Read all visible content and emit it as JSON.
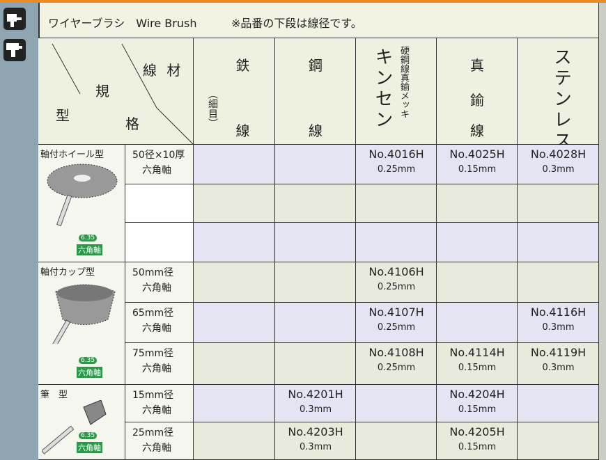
{
  "header": {
    "title": "ワイヤーブラシ　Wire Brush",
    "note": "※品番の下段は線径です。"
  },
  "corner": {
    "material": "線 材",
    "spec_top": "規",
    "type": "型",
    "spec_bottom": "格"
  },
  "columns": [
    {
      "top": "鉄",
      "sub": "（細目）",
      "bottom": "線"
    },
    {
      "top": "鋼",
      "bottom": "線"
    },
    {
      "top": "キンセン",
      "sub": "硬鋼線真鍮メッキ"
    },
    {
      "top": "真",
      "mid": "鍮",
      "bottom": "線"
    },
    {
      "top": "ステンレス線"
    }
  ],
  "badge": {
    "size": "6.35",
    "label": "六角軸"
  },
  "groups": [
    {
      "name": "軸付ホイール型",
      "rows": [
        {
          "spec": [
            "50径×10厚",
            "六角軸"
          ],
          "cells": [
            null,
            null,
            {
              "no": "No.4016H",
              "dia": "0.25mm"
            },
            {
              "no": "No.4025H",
              "dia": "0.15mm"
            },
            {
              "no": "No.4028H",
              "dia": "0.3mm"
            }
          ]
        },
        {
          "spec": [],
          "cells": [
            null,
            null,
            null,
            null,
            null
          ]
        },
        {
          "spec": [],
          "cells": [
            null,
            null,
            null,
            null,
            null
          ]
        }
      ]
    },
    {
      "name": "軸付カップ型",
      "rows": [
        {
          "spec": [
            "50mm径",
            "六角軸"
          ],
          "cells": [
            null,
            null,
            {
              "no": "No.4106H",
              "dia": "0.25mm"
            },
            null,
            null
          ]
        },
        {
          "spec": [
            "65mm径",
            "六角軸"
          ],
          "cells": [
            null,
            null,
            {
              "no": "No.4107H",
              "dia": "0.25mm"
            },
            null,
            {
              "no": "No.4116H",
              "dia": "0.3mm"
            }
          ]
        },
        {
          "spec": [
            "75mm径",
            "六角軸"
          ],
          "cells": [
            null,
            null,
            {
              "no": "No.4108H",
              "dia": "0.25mm"
            },
            {
              "no": "No.4114H",
              "dia": "0.15mm"
            },
            {
              "no": "No.4119H",
              "dia": "0.3mm"
            }
          ]
        }
      ]
    },
    {
      "name": "筆　型",
      "rows": [
        {
          "spec": [
            "15mm径",
            "六角軸"
          ],
          "cells": [
            null,
            {
              "no": "No.4201H",
              "dia": "0.3mm"
            },
            null,
            {
              "no": "No.4204H",
              "dia": "0.15mm"
            },
            null
          ]
        },
        {
          "spec": [
            "25mm径",
            "六角軸"
          ],
          "cells": [
            null,
            {
              "no": "No.4203H",
              "dia": "0.3mm"
            },
            null,
            {
              "no": "No.4205H",
              "dia": "0.15mm"
            },
            null
          ]
        }
      ]
    }
  ]
}
